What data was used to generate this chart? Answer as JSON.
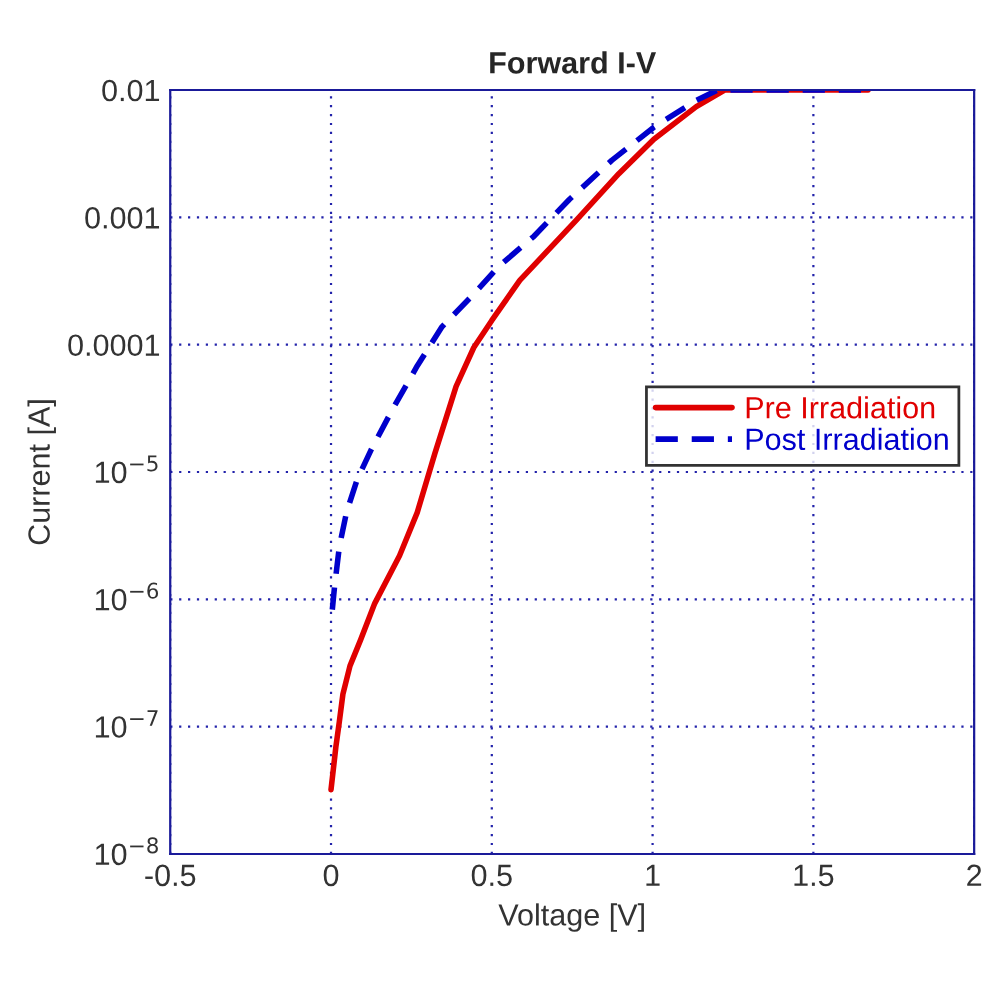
{
  "chart_data": {
    "type": "line",
    "title": "Forward I-V",
    "xlabel": "Voltage [V]",
    "ylabel": "Current [A]",
    "log": "y",
    "grid": true,
    "legend": "right",
    "marker": "none",
    "xlim": [
      -0.5,
      2
    ],
    "xticks": [
      -0.5,
      0,
      0.5,
      1,
      1.5,
      2
    ],
    "ylim": [
      1e-08,
      0.01
    ],
    "yticks": [
      {
        "value": 1e-08,
        "label": "10$^{−8}$"
      },
      {
        "value": 1e-07,
        "label": "10$^{−7}$"
      },
      {
        "value": 1e-06,
        "label": "10$^{−6}$"
      },
      {
        "value": 1e-05,
        "label": "10$^{−5}$"
      },
      {
        "value": 0.0001,
        "label": "0.0001"
      },
      {
        "value": 0.001,
        "label": "0.001"
      },
      {
        "value": 0.01,
        "label": "0.01"
      }
    ],
    "series": [
      {
        "name": "Pre Irradiation",
        "color": "#e00000",
        "line_style": "solid",
        "x": [
          0,
          0.015,
          0.026,
          0.037,
          0.059,
          0.092,
          0.136,
          0.213,
          0.268,
          0.323,
          0.389,
          0.444,
          0.5,
          0.587,
          0.763,
          0.895,
          1.004,
          1.136,
          1.224,
          1.67
        ],
        "values": [
          3.2e-08,
          6.9e-08,
          1.1e-07,
          1.8e-07,
          3e-07,
          4.8e-07,
          9.3e-07,
          2.2e-06,
          4.8e-06,
          1.4e-05,
          4.7e-05,
          9.5e-05,
          0.000155,
          0.00032,
          0.00095,
          0.0022,
          0.0041,
          0.0074,
          0.01,
          0.01
        ]
      },
      {
        "name": "Post Irradiation",
        "color": "#0000cc",
        "line_style": "dashed",
        "x": [
          0.004,
          0.011,
          0.026,
          0.048,
          0.081,
          0.125,
          0.191,
          0.268,
          0.345,
          0.444,
          0.521,
          0.631,
          0.741,
          0.873,
          1.004,
          1.136,
          1.202,
          1.67
        ],
        "values": [
          8.3e-07,
          1.26e-06,
          2.6e-06,
          4.8e-06,
          8.7e-06,
          1.5e-05,
          3.1e-05,
          6.8e-05,
          0.000138,
          0.00025,
          0.00041,
          0.00071,
          0.00138,
          0.0028,
          0.0051,
          0.0083,
          0.01,
          0.01
        ]
      }
    ]
  }
}
